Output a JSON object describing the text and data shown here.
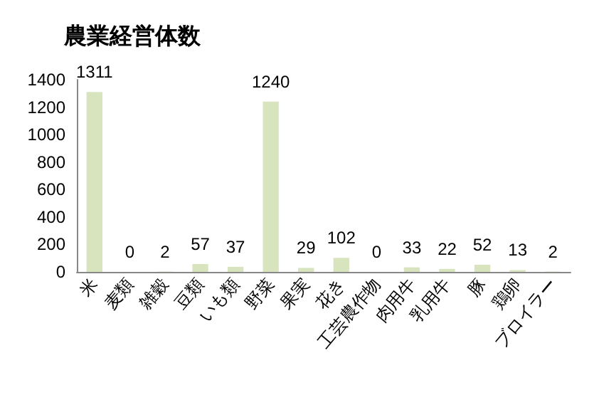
{
  "chart_data": {
    "type": "bar",
    "title": "農業経営体数",
    "categories": [
      "米",
      "麦類",
      "雑穀",
      "豆類",
      "いも類",
      "野菜",
      "果実",
      "花き",
      "工芸農作物",
      "肉用牛",
      "乳用牛",
      "豚",
      "鶏卵",
      "ブロイラー"
    ],
    "values": [
      1311,
      0,
      2,
      57,
      37,
      1240,
      29,
      102,
      0,
      33,
      22,
      52,
      13,
      2
    ],
    "color": "#d7e4bd",
    "ylim": [
      0,
      1400
    ],
    "yticks": [
      0,
      200,
      400,
      600,
      800,
      1000,
      1200,
      1400
    ],
    "grid": false,
    "data_labels": true
  }
}
